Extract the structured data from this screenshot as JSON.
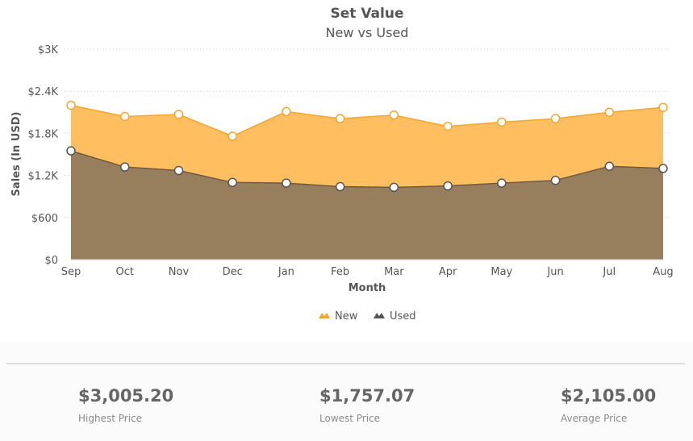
{
  "chart_data": {
    "type": "area",
    "title": "Set Value",
    "subtitle": "New vs Used",
    "xlabel": "Month",
    "ylabel": "Sales (In USD)",
    "categories": [
      "Sep",
      "Oct",
      "Nov",
      "Dec",
      "Jan",
      "Feb",
      "Mar",
      "Apr",
      "May",
      "Jun",
      "Jul",
      "Aug"
    ],
    "ylim": [
      0,
      3000
    ],
    "y_ticks": [
      0,
      600,
      1200,
      1800,
      2400,
      3000
    ],
    "y_tick_labels": [
      "$0",
      "$600",
      "$1.2K",
      "$1.8K",
      "$2.4K",
      "$3K"
    ],
    "grid": true,
    "legend_position": "bottom-center",
    "series": [
      {
        "name": "New",
        "color": "#ffbe5f",
        "line_color": "#f2a630",
        "values": [
          2200,
          2040,
          2070,
          1760,
          2110,
          2010,
          2060,
          1900,
          1960,
          2010,
          2100,
          2170
        ]
      },
      {
        "name": "Used",
        "color": "#977e5d",
        "line_color": "#6e5a3e",
        "values": [
          1550,
          1320,
          1270,
          1100,
          1090,
          1040,
          1030,
          1050,
          1090,
          1130,
          1330,
          1300
        ]
      }
    ]
  },
  "summary": [
    {
      "value": "$3,005.20",
      "label": "Highest Price"
    },
    {
      "value": "$1,757.07",
      "label": "Lowest Price"
    },
    {
      "value": "$2,105.00",
      "label": "Average Price"
    }
  ]
}
